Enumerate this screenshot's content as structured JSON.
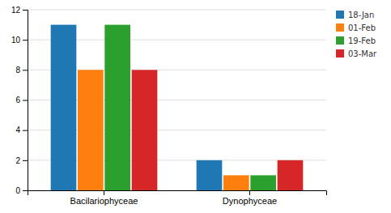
{
  "chart_data": {
    "type": "bar",
    "categories": [
      "Bacilariophyceae",
      "Dynophyceae"
    ],
    "series": [
      {
        "name": "18-Jan",
        "values": [
          11,
          2
        ]
      },
      {
        "name": "01-Feb",
        "values": [
          8,
          1
        ]
      },
      {
        "name": "19-Feb",
        "values": [
          11,
          1
        ]
      },
      {
        "name": "03-Mar",
        "values": [
          8,
          2
        ]
      }
    ],
    "ylim": [
      0,
      12
    ],
    "yticks": [
      0,
      2,
      4,
      6,
      8,
      10,
      12
    ],
    "grid": true,
    "legend": "upper right"
  }
}
